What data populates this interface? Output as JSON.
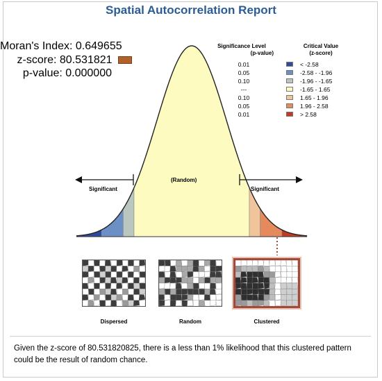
{
  "report": {
    "title": "Spatial Autocorrelation Report",
    "conclusion": "Given the z-score of 80.531820825, there is a less than 1% likelihood that this clustered pattern could be the result of random chance."
  },
  "stats": {
    "morans_label": "Moran's Index:",
    "morans_value": "0.649655",
    "z_label": "z-score:",
    "z_value": "80.531821",
    "p_label": "p-value:",
    "p_value": "0.000000",
    "z_swatch_color": "#b0622c"
  },
  "legend": {
    "sig_header": [
      "Significance Level",
      "(p-value)"
    ],
    "crit_header": [
      "Critical Value",
      "(z-score)"
    ],
    "rows": [
      {
        "sig": "0.01",
        "crit": "< -2.58",
        "color": "#2e4a9a"
      },
      {
        "sig": "0.05",
        "crit": "-2.58 - -1.96",
        "color": "#6c8fc6"
      },
      {
        "sig": "0.10",
        "crit": "-1.96 - -1.65",
        "color": "#b9c7c0"
      },
      {
        "sig": "---",
        "crit": "-1.65 - 1.65",
        "color": "#fdfbc0"
      },
      {
        "sig": "0.10",
        "crit": "1.65 - 1.96",
        "color": "#f1c59b"
      },
      {
        "sig": "0.05",
        "crit": "1.96 - 2.58",
        "color": "#e58a5c"
      },
      {
        "sig": "0.01",
        "crit": "> 2.58",
        "color": "#bf3b26"
      }
    ]
  },
  "curve": {
    "left_label": "Significant",
    "center_label": "(Random)",
    "right_label": "Significant",
    "z_thresholds": [
      -2.58,
      -1.96,
      -1.65,
      1.65,
      1.96,
      2.58
    ],
    "z_range": [
      -3.3,
      3.3
    ]
  },
  "maps": [
    {
      "caption": "Dispersed",
      "pattern": "dispersed",
      "active": false
    },
    {
      "caption": "Random",
      "pattern": "random",
      "active": false
    },
    {
      "caption": "Clustered",
      "pattern": "clustered",
      "active": true
    }
  ]
}
